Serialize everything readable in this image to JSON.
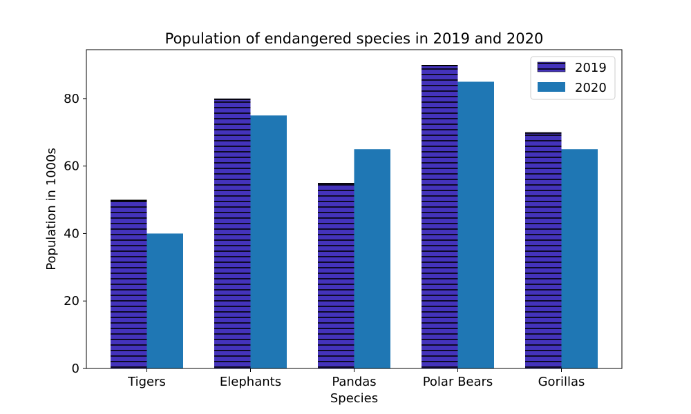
{
  "chart_data": {
    "type": "bar",
    "title": "Population of endangered species in 2019 and 2020",
    "xlabel": "Species",
    "ylabel": "Population in 1000s",
    "categories": [
      "Tigers",
      "Elephants",
      "Pandas",
      "Polar Bears",
      "Gorillas"
    ],
    "series": [
      {
        "name": "2019",
        "values": [
          50,
          80,
          55,
          90,
          70
        ],
        "color": "#4433bb",
        "hatch": "horizontal"
      },
      {
        "name": "2020",
        "values": [
          40,
          75,
          65,
          85,
          65
        ],
        "color": "#1f77b4",
        "hatch": "none"
      }
    ],
    "ylim": [
      0,
      94.5
    ],
    "yticks": [
      0,
      20,
      40,
      60,
      80
    ],
    "grid": false,
    "legend_position": "top-right"
  }
}
